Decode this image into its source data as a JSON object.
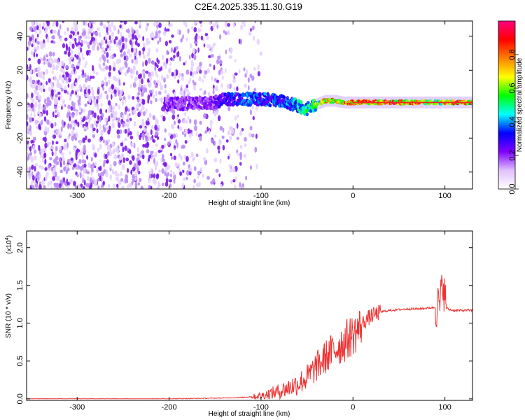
{
  "title": "C2E4.2025.335.11.30.G19",
  "chart_data": [
    {
      "type": "heatmap",
      "xlabel": "Height of straight line (km)",
      "ylabel": "Frequency (Hz)",
      "xlim": [
        -355,
        130
      ],
      "ylim": [
        -50,
        49
      ],
      "xticks": [
        -300,
        -200,
        -100,
        0,
        100
      ],
      "yticks": [
        -40,
        -20,
        0,
        20,
        40
      ],
      "colorbar": {
        "label": "Normalized spectral amplitude",
        "range": [
          0,
          1
        ],
        "ticks": [
          0.0,
          0.2,
          0.4,
          0.6,
          0.8
        ],
        "colors": [
          "#ffffff",
          "#e0c0ff",
          "#8000ff",
          "#0000ff",
          "#00ffff",
          "#00ff00",
          "#ffff00",
          "#ff8000",
          "#ff0000",
          "#ff0080"
        ]
      },
      "noise_region_x": [
        -355,
        -100
      ],
      "signal_trace": {
        "x": [
          -200,
          -150,
          -140,
          -120,
          -100,
          -80,
          -60,
          -50,
          -40,
          -30,
          -20,
          -10,
          0,
          10,
          40,
          70,
          95,
          100,
          130
        ],
        "frequency": [
          0,
          1,
          3,
          3,
          3,
          2,
          -1,
          -3,
          0,
          2,
          2,
          1,
          1,
          1,
          1,
          1,
          1,
          1,
          1
        ],
        "peak_amplitude": [
          0.25,
          0.25,
          0.35,
          0.4,
          0.4,
          0.4,
          0.5,
          0.6,
          0.65,
          0.8,
          0.9,
          0.9,
          0.9,
          0.95,
          0.95,
          0.95,
          0.6,
          0.9,
          0.95
        ]
      }
    },
    {
      "type": "line",
      "xlabel": "Height of straight line (km)",
      "ylabel": "SNR (10 * v/v)",
      "scale_label": "(x10",
      "scale_exp": "4",
      "scale_close": ")",
      "xlim": [
        -355,
        130
      ],
      "ylim": [
        -0.02,
        2.22
      ],
      "xticks": [
        -300,
        -200,
        -100,
        0,
        100
      ],
      "yticks": [
        0.0,
        0.5,
        1.0,
        1.5,
        2.0
      ],
      "series": [
        {
          "color": "#ee3333",
          "x": [
            -355,
            -300,
            -250,
            -200,
            -150,
            -120,
            -100,
            -90,
            -80,
            -70,
            -60,
            -50,
            -45,
            -40,
            -35,
            -30,
            -25,
            -20,
            -15,
            -10,
            -5,
            0,
            5,
            10,
            15,
            20,
            25,
            30,
            40,
            50,
            60,
            70,
            80,
            90,
            95,
            98,
            100,
            102,
            105,
            110,
            120,
            130
          ],
          "y": [
            0.0,
            0.0,
            0.0,
            0.0,
            0.01,
            0.02,
            0.04,
            0.07,
            0.1,
            0.15,
            0.2,
            0.28,
            0.35,
            0.42,
            0.48,
            0.55,
            0.6,
            0.65,
            0.7,
            0.75,
            0.8,
            0.85,
            0.9,
            1.0,
            1.05,
            1.1,
            1.12,
            1.15,
            1.17,
            1.18,
            1.19,
            1.19,
            1.2,
            1.21,
            1.25,
            1.6,
            1.3,
            1.2,
            1.18,
            1.17,
            1.17,
            1.17
          ]
        }
      ]
    }
  ]
}
